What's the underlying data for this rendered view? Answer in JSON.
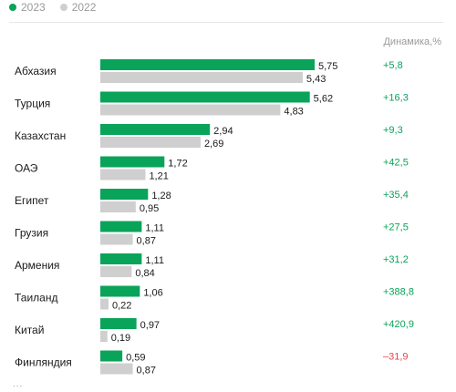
{
  "legend": {
    "current_label": "2023",
    "previous_label": "2022"
  },
  "colors": {
    "current": "#0aa35a",
    "previous": "#cfcfcf",
    "positive": "#0aa35a",
    "negative": "#e5464a"
  },
  "dynamics_header": "Динамика,%",
  "ellipsis": "...",
  "chart_data": {
    "type": "bar",
    "orientation": "horizontal",
    "categories": [
      "Абхазия",
      "Турция",
      "Казахстан",
      "ОАЭ",
      "Египет",
      "Грузия",
      "Армения",
      "Таиланд",
      "Китай",
      "Финляндия"
    ],
    "series": [
      {
        "name": "2023",
        "values": [
          5.75,
          5.62,
          2.94,
          1.72,
          1.28,
          1.11,
          1.11,
          1.06,
          0.97,
          0.59
        ],
        "labels": [
          "5,75",
          "5,62",
          "2,94",
          "1,72",
          "1,28",
          "1,11",
          "1,11",
          "1,06",
          "0,97",
          "0,59"
        ]
      },
      {
        "name": "2022",
        "values": [
          5.43,
          4.83,
          2.69,
          1.21,
          0.95,
          0.87,
          0.84,
          0.22,
          0.19,
          0.87
        ],
        "labels": [
          "5,43",
          "4,83",
          "2,69",
          "1,21",
          "0,95",
          "0,87",
          "0,84",
          "0,22",
          "0,19",
          "0,87"
        ]
      }
    ],
    "dynamics": [
      "+5,8",
      "+16,3",
      "+9,3",
      "+42,5",
      "+35,4",
      "+27,5",
      "+31,2",
      "+388,8",
      "+420,9",
      "–31,9"
    ],
    "dynamics_sign": [
      1,
      1,
      1,
      1,
      1,
      1,
      1,
      1,
      1,
      -1
    ],
    "xlim": [
      0,
      5.75
    ],
    "grid": false,
    "legend_position": "top-left"
  }
}
